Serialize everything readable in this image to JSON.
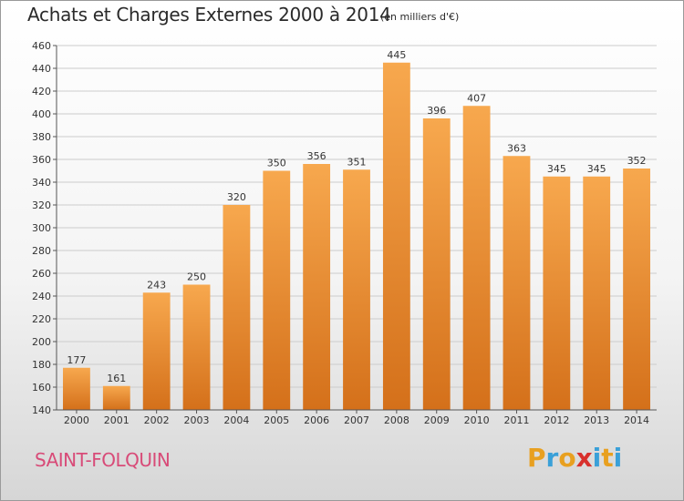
{
  "header": {
    "title": "Achats et Charges Externes 2000 à 2014",
    "subtitle": "(en milliers d'€)"
  },
  "footer": {
    "commune": "SAINT-FOLQUIN",
    "brand_letters": [
      "P",
      "r",
      "o",
      "x",
      "i",
      "t",
      "i"
    ],
    "brand_colors": [
      "#e8a020",
      "#3aa0d8",
      "#e8a020",
      "#d8302c",
      "#3aa0d8",
      "#e8a020",
      "#3aa0d8"
    ]
  },
  "colors": {
    "bar_top": "#f7a84e",
    "bar_bottom": "#d4701a",
    "grid": "#cccccc",
    "axis": "#555555",
    "commune": "#d84b78"
  },
  "chart_data": {
    "type": "bar",
    "categories": [
      "2000",
      "2001",
      "2002",
      "2003",
      "2004",
      "2005",
      "2006",
      "2007",
      "2008",
      "2009",
      "2010",
      "2011",
      "2012",
      "2013",
      "2014"
    ],
    "values": [
      177,
      161,
      243,
      250,
      320,
      350,
      356,
      351,
      445,
      396,
      407,
      363,
      345,
      345,
      352
    ],
    "ylim": [
      140,
      460
    ],
    "yticks": [
      140,
      160,
      180,
      200,
      220,
      240,
      260,
      280,
      300,
      320,
      340,
      360,
      380,
      400,
      420,
      440,
      460
    ],
    "grid": true,
    "title": "Achats et Charges Externes 2000 à 2014",
    "xlabel": "",
    "ylabel": ""
  }
}
